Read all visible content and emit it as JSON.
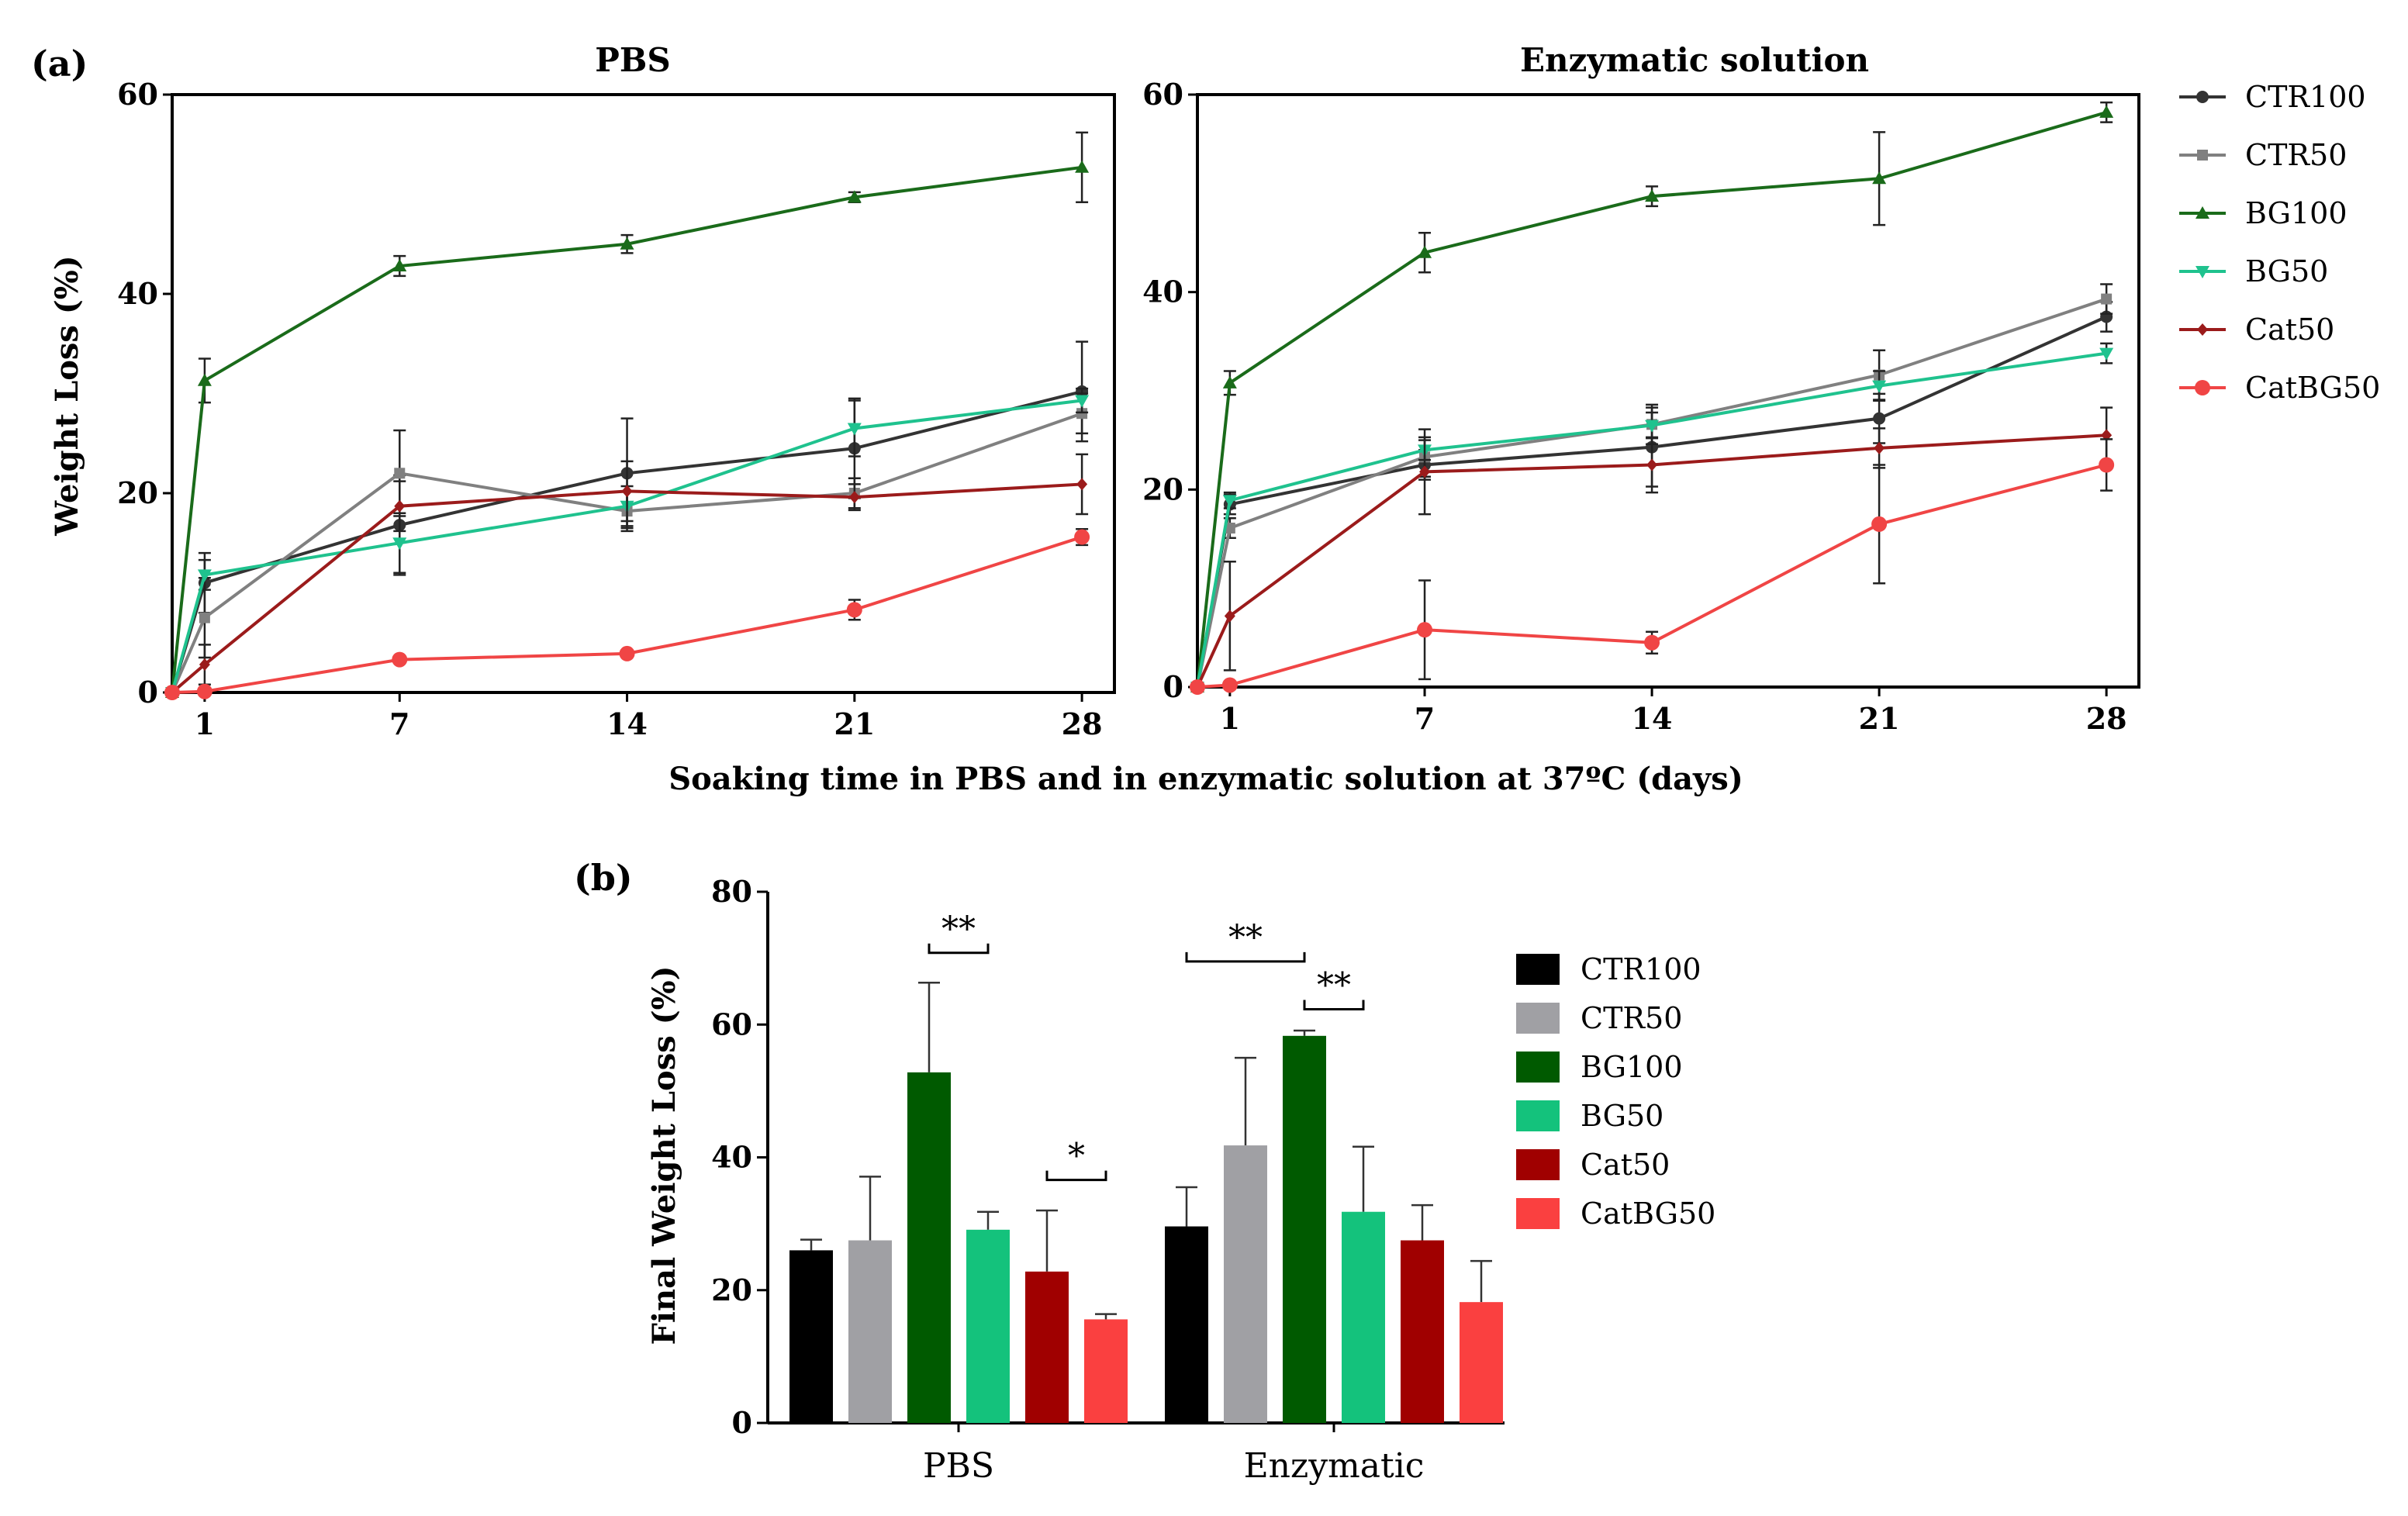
{
  "figure": {
    "panel_a_label": "(a)",
    "panel_b_label": "(b)",
    "shared_xlabel": "Soaking time in PBS and in enzymatic solution  at 37ºC (days)"
  },
  "legend_a": [
    {
      "name": "CTR100",
      "color": "#333333",
      "marker": "circle"
    },
    {
      "name": "CTR50",
      "color": "#808080",
      "marker": "square"
    },
    {
      "name": "BG100",
      "color": "#1a6b1a",
      "marker": "triangle-up"
    },
    {
      "name": "BG50",
      "color": "#1fc28e",
      "marker": "triangle-down"
    },
    {
      "name": "Cat50",
      "color": "#9b1b1b",
      "marker": "diamond"
    },
    {
      "name": "CatBG50",
      "color": "#f04545",
      "marker": "circle-large"
    }
  ],
  "legend_b": [
    {
      "name": "CTR100",
      "color": "#000000"
    },
    {
      "name": "CTR50",
      "color": "#a0a0a4"
    },
    {
      "name": "BG100",
      "color": "#005a00"
    },
    {
      "name": "BG50",
      "color": "#14c27c"
    },
    {
      "name": "Cat50",
      "color": "#a00000"
    },
    {
      "name": "CatBG50",
      "color": "#fa4040"
    }
  ],
  "chart_data": [
    {
      "type": "line",
      "title": "PBS",
      "xlabel": "Soaking time in PBS and in enzymatic solution  at 37ºC (days)",
      "ylabel": "Weight Loss (%)",
      "x": [
        0,
        1,
        7,
        14,
        21,
        28
      ],
      "xticks": [
        "1",
        "7",
        "14",
        "21",
        "28"
      ],
      "xlim": [
        0,
        29
      ],
      "ylim": [
        0,
        60
      ],
      "yticks": [
        0,
        20,
        40,
        60
      ],
      "series": [
        {
          "name": "CTR100",
          "values": [
            0,
            11,
            16.8,
            22,
            24.5,
            30.2
          ],
          "err": [
            0,
            3,
            5,
            5.5,
            5,
            5
          ]
        },
        {
          "name": "CTR50",
          "values": [
            0,
            7.5,
            22,
            18.2,
            20,
            28
          ],
          "err": [
            0,
            4,
            4.3,
            2,
            1.5,
            2
          ]
        },
        {
          "name": "BG100",
          "values": [
            0,
            31.3,
            42.8,
            45,
            49.7,
            52.7
          ],
          "err": [
            0,
            2.2,
            1,
            0.9,
            0.5,
            3.5
          ]
        },
        {
          "name": "BG50",
          "values": [
            0,
            11.8,
            15,
            18.7,
            26.5,
            29.3
          ],
          "err": [
            0,
            1.5,
            3,
            2,
            2.8,
            1.2
          ]
        },
        {
          "name": "Cat50",
          "values": [
            0,
            2.8,
            18.7,
            20.2,
            19.6,
            20.9
          ],
          "err": [
            0,
            2,
            2.5,
            3,
            1.3,
            3
          ]
        },
        {
          "name": "CatBG50",
          "values": [
            0,
            0.1,
            3.3,
            3.9,
            8.3,
            15.6
          ],
          "err": [
            0,
            0,
            0.2,
            0.3,
            1,
            0.8
          ]
        }
      ]
    },
    {
      "type": "line",
      "title": "Enzymatic solution",
      "xlabel": "Soaking time in PBS and in enzymatic solution  at 37ºC (days)",
      "ylabel": "",
      "x": [
        0,
        1,
        7,
        14,
        21,
        28
      ],
      "xticks": [
        "1",
        "7",
        "14",
        "21",
        "28"
      ],
      "xlim": [
        0,
        29
      ],
      "ylim": [
        0,
        60
      ],
      "yticks": [
        0,
        20,
        40,
        60
      ],
      "series": [
        {
          "name": "CTR100",
          "values": [
            0,
            18.5,
            22.5,
            24.3,
            27.2,
            37.5
          ],
          "err": [
            0,
            1,
            1.5,
            4,
            2.5,
            1.5
          ]
        },
        {
          "name": "CTR50",
          "values": [
            0,
            16.1,
            23.3,
            26.6,
            31.6,
            39.3
          ],
          "err": [
            0,
            1,
            2,
            2,
            2.5,
            1.5
          ]
        },
        {
          "name": "BG100",
          "values": [
            0,
            30.8,
            44,
            49.7,
            51.5,
            58.2
          ],
          "err": [
            0,
            1.2,
            2,
            1,
            4.7,
            1
          ]
        },
        {
          "name": "BG50",
          "values": [
            0,
            18.9,
            24,
            26.5,
            30.5,
            33.8
          ],
          "err": [
            0,
            0.8,
            1,
            1.3,
            1.5,
            1
          ]
        },
        {
          "name": "Cat50",
          "values": [
            0,
            7.2,
            21.8,
            22.5,
            24.2,
            25.5
          ],
          "err": [
            0,
            5.5,
            4.3,
            2.8,
            2,
            2.8
          ]
        },
        {
          "name": "CatBG50",
          "values": [
            0,
            0.2,
            5.8,
            4.5,
            16.5,
            22.5
          ],
          "err": [
            0,
            0,
            5,
            1.1,
            6,
            2.6
          ]
        }
      ]
    },
    {
      "type": "bar",
      "title": "",
      "xlabel": "",
      "ylabel": "Final Weight Loss  (%)",
      "categories": [
        "PBS",
        "Enzymatic"
      ],
      "ylim": [
        0,
        80
      ],
      "yticks": [
        0,
        20,
        40,
        60,
        80
      ],
      "series": [
        {
          "name": "CTR100",
          "values": [
            26,
            29.6
          ],
          "err": [
            1.6,
            5.9
          ]
        },
        {
          "name": "CTR50",
          "values": [
            27.5,
            41.8
          ],
          "err": [
            9.6,
            13.2
          ]
        },
        {
          "name": "BG100",
          "values": [
            52.8,
            58.3
          ],
          "err": [
            13.5,
            0.8
          ]
        },
        {
          "name": "BG50",
          "values": [
            29.1,
            31.8
          ],
          "err": [
            2.7,
            9.8
          ]
        },
        {
          "name": "Cat50",
          "values": [
            22.8,
            27.5
          ],
          "err": [
            9.2,
            5.3
          ]
        },
        {
          "name": "CatBG50",
          "values": [
            15.6,
            18.2
          ],
          "err": [
            0.8,
            6.2
          ]
        }
      ],
      "significance": [
        {
          "label": "**",
          "category": "PBS",
          "from": "BG100",
          "to": "BG50",
          "y": 70.8
        },
        {
          "label": "*",
          "category": "PBS",
          "from": "Cat50",
          "to": "CatBG50",
          "y": 36.6
        },
        {
          "label": "**",
          "category": "Enzymatic",
          "from": "CTR100",
          "to": "BG100",
          "y": 69.5
        },
        {
          "label": "**",
          "category": "Enzymatic",
          "from": "BG100",
          "to": "BG50",
          "y": 62.3
        }
      ]
    }
  ]
}
